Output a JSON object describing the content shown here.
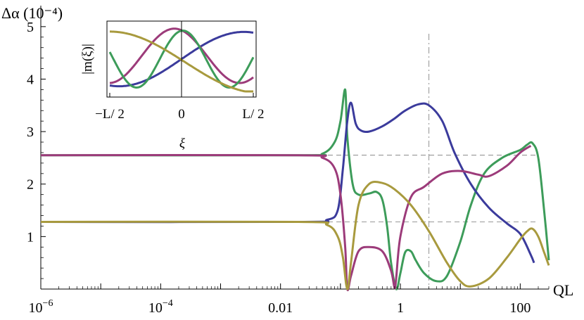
{
  "chart_data": [
    {
      "type": "line",
      "title": "",
      "xlabel": "QL",
      "ylabel": "Δα (10⁻⁴)",
      "x_scale": "log",
      "xlim": [
        1e-06,
        300
      ],
      "ylim": [
        0,
        5.4
      ],
      "x_ticks": [
        {
          "value": 1e-06,
          "label_base": "10",
          "label_exp": "−6"
        },
        {
          "value": 0.0001,
          "label_base": "10",
          "label_exp": "−4"
        },
        {
          "value": 0.01,
          "label_base": "0.01",
          "label_exp": ""
        },
        {
          "value": 1,
          "label_base": "1",
          "label_exp": ""
        },
        {
          "value": 100,
          "label_base": "100",
          "label_exp": ""
        }
      ],
      "y_ticks": [
        1,
        2,
        3,
        4,
        5
      ],
      "reference_lines": {
        "horizontal": [
          2.55,
          1.28
        ],
        "vertical": [
          3.0
        ]
      },
      "colors": {
        "blue": "#3b3b9c",
        "magenta": "#9c3b7a",
        "green": "#3d9c5a",
        "gold": "#a89a3e"
      },
      "series": [
        {
          "color": "#3d9c5a",
          "points": [
            [
              1e-06,
              2.55
            ],
            [
              0.02,
              2.55
            ],
            [
              0.05,
              2.58
            ],
            [
              0.08,
              2.8
            ],
            [
              0.1,
              3.2
            ],
            [
              0.12,
              3.8
            ],
            [
              0.13,
              2.9
            ],
            [
              0.16,
              2.0
            ],
            [
              0.2,
              1.8
            ],
            [
              0.3,
              1.82
            ],
            [
              0.4,
              1.85
            ],
            [
              0.5,
              1.7
            ],
            [
              0.6,
              1.2
            ],
            [
              0.7,
              0.5
            ],
            [
              0.85,
              0.0
            ],
            [
              1.0,
              0.3
            ],
            [
              1.2,
              0.7
            ],
            [
              1.5,
              0.72
            ],
            [
              1.8,
              0.55
            ],
            [
              2.5,
              0.3
            ],
            [
              4,
              0.15
            ],
            [
              6,
              0.25
            ],
            [
              10,
              0.9
            ],
            [
              15,
              1.6
            ],
            [
              25,
              2.2
            ],
            [
              50,
              2.5
            ],
            [
              100,
              2.65
            ],
            [
              130,
              2.75
            ],
            [
              160,
              2.78
            ],
            [
              200,
              2.5
            ],
            [
              250,
              1.5
            ],
            [
              300,
              0.55
            ]
          ]
        },
        {
          "color": "#3b3b9c",
          "points": [
            [
              1e-06,
              1.28
            ],
            [
              0.02,
              1.28
            ],
            [
              0.06,
              1.32
            ],
            [
              0.09,
              1.5
            ],
            [
              0.11,
              2.3
            ],
            [
              0.13,
              3.2
            ],
            [
              0.15,
              3.55
            ],
            [
              0.18,
              3.15
            ],
            [
              0.22,
              3.02
            ],
            [
              0.3,
              3.0
            ],
            [
              0.5,
              3.1
            ],
            [
              0.8,
              3.25
            ],
            [
              1.2,
              3.4
            ],
            [
              2,
              3.52
            ],
            [
              3,
              3.5
            ],
            [
              5,
              3.2
            ],
            [
              8,
              2.6
            ],
            [
              15,
              2.0
            ],
            [
              30,
              1.55
            ],
            [
              60,
              1.25
            ],
            [
              100,
              1.05
            ],
            [
              150,
              0.65
            ],
            [
              170,
              0.5
            ]
          ]
        },
        {
          "color": "#9c3b7a",
          "points": [
            [
              1e-06,
              2.55
            ],
            [
              0.02,
              2.55
            ],
            [
              0.05,
              2.5
            ],
            [
              0.08,
              2.3
            ],
            [
              0.1,
              1.8
            ],
            [
              0.12,
              0.8
            ],
            [
              0.13,
              0.0
            ],
            [
              0.15,
              0.25
            ],
            [
              0.2,
              0.72
            ],
            [
              0.3,
              0.8
            ],
            [
              0.5,
              0.72
            ],
            [
              0.7,
              0.35
            ],
            [
              0.8,
              0.02
            ],
            [
              0.85,
              0.2
            ],
            [
              1.0,
              1.0
            ],
            [
              1.5,
              1.75
            ],
            [
              2.5,
              1.95
            ],
            [
              5,
              2.2
            ],
            [
              10,
              2.25
            ],
            [
              20,
              2.18
            ],
            [
              30,
              2.15
            ],
            [
              60,
              2.35
            ],
            [
              100,
              2.6
            ],
            [
              150,
              2.73
            ]
          ]
        },
        {
          "color": "#a89a3e",
          "points": [
            [
              1e-06,
              1.28
            ],
            [
              0.02,
              1.28
            ],
            [
              0.06,
              1.22
            ],
            [
              0.09,
              1.0
            ],
            [
              0.11,
              0.6
            ],
            [
              0.13,
              0.0
            ],
            [
              0.15,
              0.5
            ],
            [
              0.2,
              1.6
            ],
            [
              0.3,
              2.0
            ],
            [
              0.5,
              2.02
            ],
            [
              0.8,
              1.9
            ],
            [
              1.5,
              1.6
            ],
            [
              3,
              1.1
            ],
            [
              6,
              0.5
            ],
            [
              10,
              0.15
            ],
            [
              15,
              0.05
            ],
            [
              30,
              0.2
            ],
            [
              60,
              0.6
            ],
            [
              100,
              0.95
            ],
            [
              130,
              1.1
            ],
            [
              160,
              1.15
            ],
            [
              200,
              1.0
            ],
            [
              250,
              0.7
            ],
            [
              300,
              0.45
            ]
          ]
        }
      ]
    },
    {
      "type": "line",
      "xlabel": "ξ",
      "ylabel": "|m(ξ)|",
      "x_ticks": [
        "−L/ 2",
        "0",
        "L/ 2"
      ],
      "xlim": [
        -0.5,
        0.5
      ],
      "series": [
        {
          "color": "#3b3b9c",
          "fn": "blue"
        },
        {
          "color": "#9c3b7a",
          "fn": "magenta"
        },
        {
          "color": "#3d9c5a",
          "fn": "green"
        },
        {
          "color": "#a89a3e",
          "fn": "gold"
        }
      ]
    }
  ]
}
